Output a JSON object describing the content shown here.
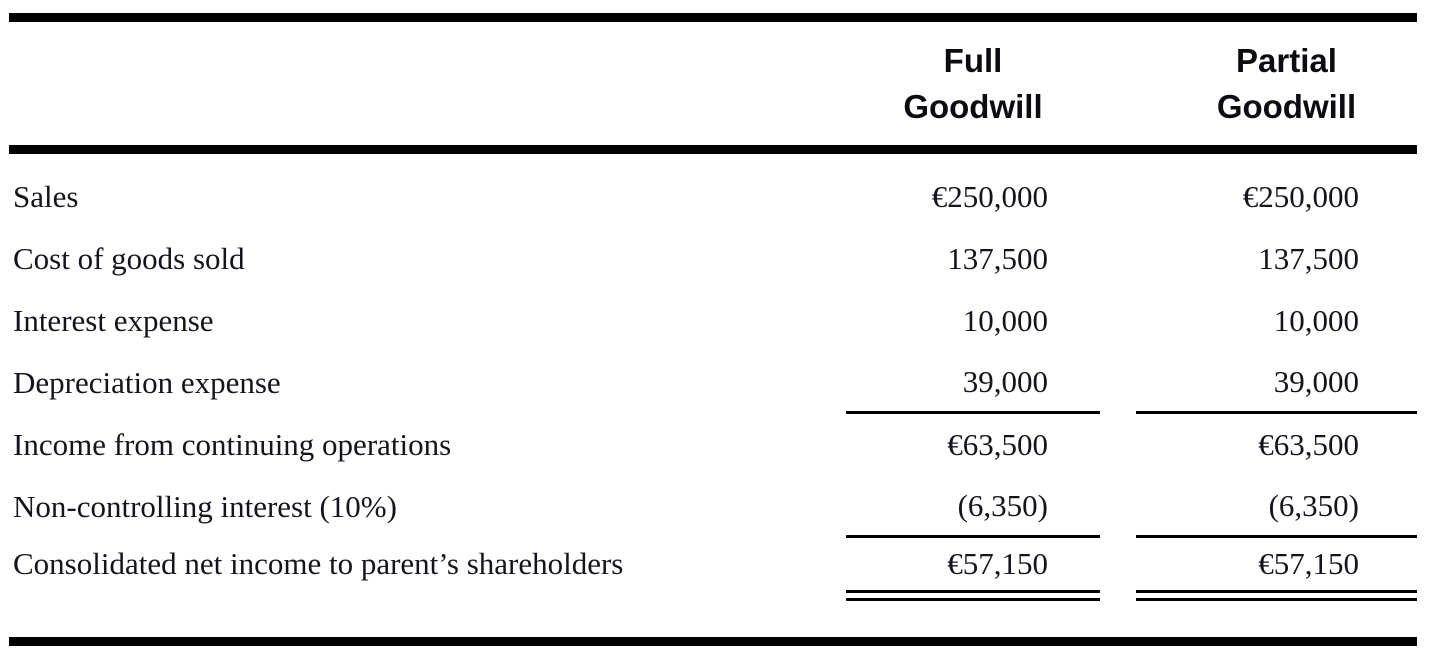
{
  "table": {
    "header": {
      "full_col": {
        "line1": "Full",
        "line2": "Goodwill"
      },
      "partial_col": {
        "line1": "Partial",
        "line2": "Goodwill"
      }
    },
    "rows": [
      {
        "label": "Sales",
        "full": "€250,000",
        "partial": "€250,000"
      },
      {
        "label": "Cost of goods sold",
        "full": "137,500",
        "partial": "137,500"
      },
      {
        "label": "Interest expense",
        "full": "10,000",
        "partial": "10,000"
      },
      {
        "label": "Depreciation expense",
        "full": "39,000",
        "partial": "39,000"
      },
      {
        "label": "Income from continuing operations",
        "full": "€63,500",
        "partial": "€63,500"
      },
      {
        "label": "Non-controlling interest (10%)",
        "full": "(6,350)",
        "partial": "(6,350)"
      },
      {
        "label": "Consolidated net income to parent’s shareholders",
        "full": "€57,150",
        "partial": "€57,150"
      }
    ],
    "colors": {
      "background": "#ffffff",
      "text": "#14141e",
      "rule": "#000000"
    }
  }
}
